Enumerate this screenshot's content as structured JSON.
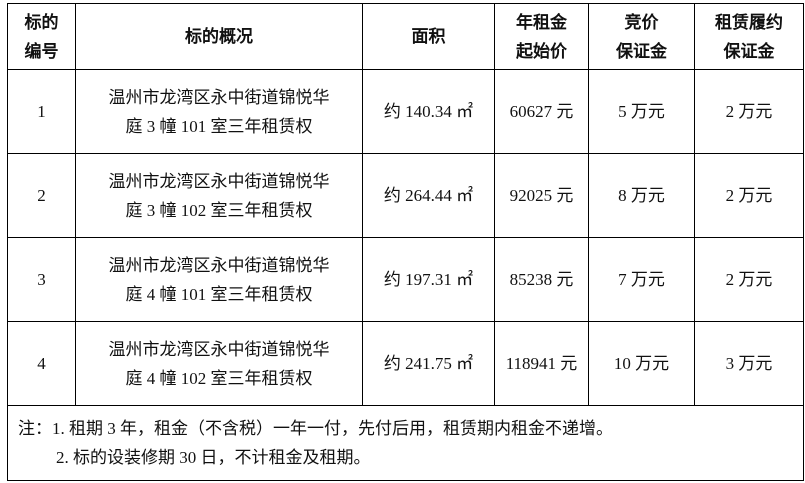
{
  "headers": [
    "标的编号",
    "标的概况",
    "面积",
    "年租金起始价",
    "竞价保证金",
    "租赁履约保证金"
  ],
  "header_lines": [
    [
      "标的",
      "编号"
    ],
    [
      "标的概况"
    ],
    [
      "面积"
    ],
    [
      "年租金",
      "起始价"
    ],
    [
      "竞价",
      "保证金"
    ],
    [
      "租赁履约",
      "保证金"
    ]
  ],
  "rows": [
    {
      "id": "1",
      "desc1": "温州市龙湾区永中街道锦悦华",
      "desc2": "庭 3 幢 101 室三年租赁权",
      "area": "约 140.34 ㎡",
      "price": "60627 元",
      "bid_deposit": "5 万元",
      "perf_deposit": "2 万元"
    },
    {
      "id": "2",
      "desc1": "温州市龙湾区永中街道锦悦华",
      "desc2": "庭 3 幢 102 室三年租赁权",
      "area": "约 264.44 ㎡",
      "price": "92025 元",
      "bid_deposit": "8 万元",
      "perf_deposit": "2 万元"
    },
    {
      "id": "3",
      "desc1": "温州市龙湾区永中街道锦悦华",
      "desc2": "庭 4 幢 101 室三年租赁权",
      "area": "约 197.31 ㎡",
      "price": "85238 元",
      "bid_deposit": "7 万元",
      "perf_deposit": "2 万元"
    },
    {
      "id": "4",
      "desc1": "温州市龙湾区永中街道锦悦华",
      "desc2": "庭 4 幢 102 室三年租赁权",
      "area": "约 241.75 ㎡",
      "price": "118941 元",
      "bid_deposit": "10 万元",
      "perf_deposit": "3 万元"
    }
  ],
  "notes": [
    "注：1. 租期 3 年，租金（不含税）一年一付，先付后用，租赁期内租金不递增。",
    "2. 标的设装修期 30 日，不计租金及租期。"
  ]
}
